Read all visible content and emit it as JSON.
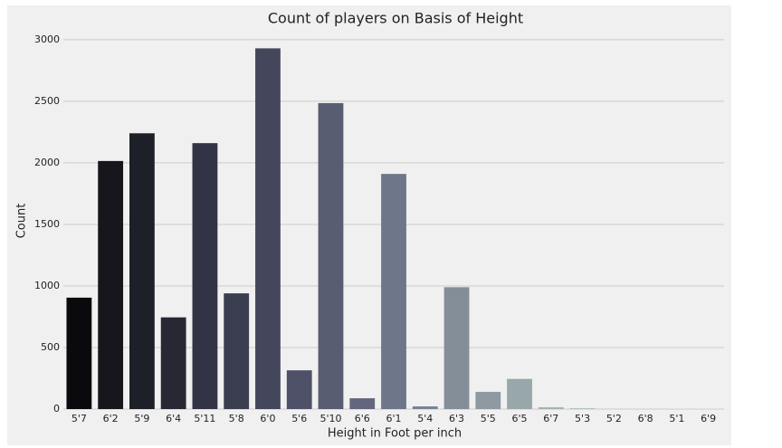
{
  "chart_data": {
    "type": "bar",
    "title": "Count of players on Basis of Height",
    "x_label": "Height in Foot per inch",
    "y_label": "Count",
    "categories": [
      "5'7",
      "6'2",
      "5'9",
      "6'4",
      "5'11",
      "5'8",
      "6'0",
      "5'6",
      "5'10",
      "6'6",
      "6'1",
      "5'4",
      "6'3",
      "5'5",
      "6'5",
      "6'7",
      "5'3",
      "5'2",
      "6'8",
      "5'1",
      "6'9"
    ],
    "values": [
      905,
      2015,
      2240,
      745,
      2160,
      940,
      2930,
      315,
      2485,
      88,
      1910,
      22,
      990,
      140,
      245,
      15,
      7,
      3,
      2,
      1,
      1
    ],
    "colors": [
      "#0a0a0e",
      "#16161c",
      "#1d1f29",
      "#272834",
      "#323445",
      "#3b3d50",
      "#44465c",
      "#4f5168",
      "#595d72",
      "#63677e",
      "#6d7789",
      "#788391",
      "#838e99",
      "#8e99a1",
      "#98a7aa",
      "#a3b3b4",
      "#adbdbd",
      "#b8c6c6",
      "#c3d0d0",
      "#cfdada",
      "#dae4e4"
    ],
    "ylim": [
      0,
      3080
    ],
    "yticks": [
      0,
      500,
      1000,
      1500,
      2000,
      2500,
      3000
    ],
    "grid": true
  }
}
